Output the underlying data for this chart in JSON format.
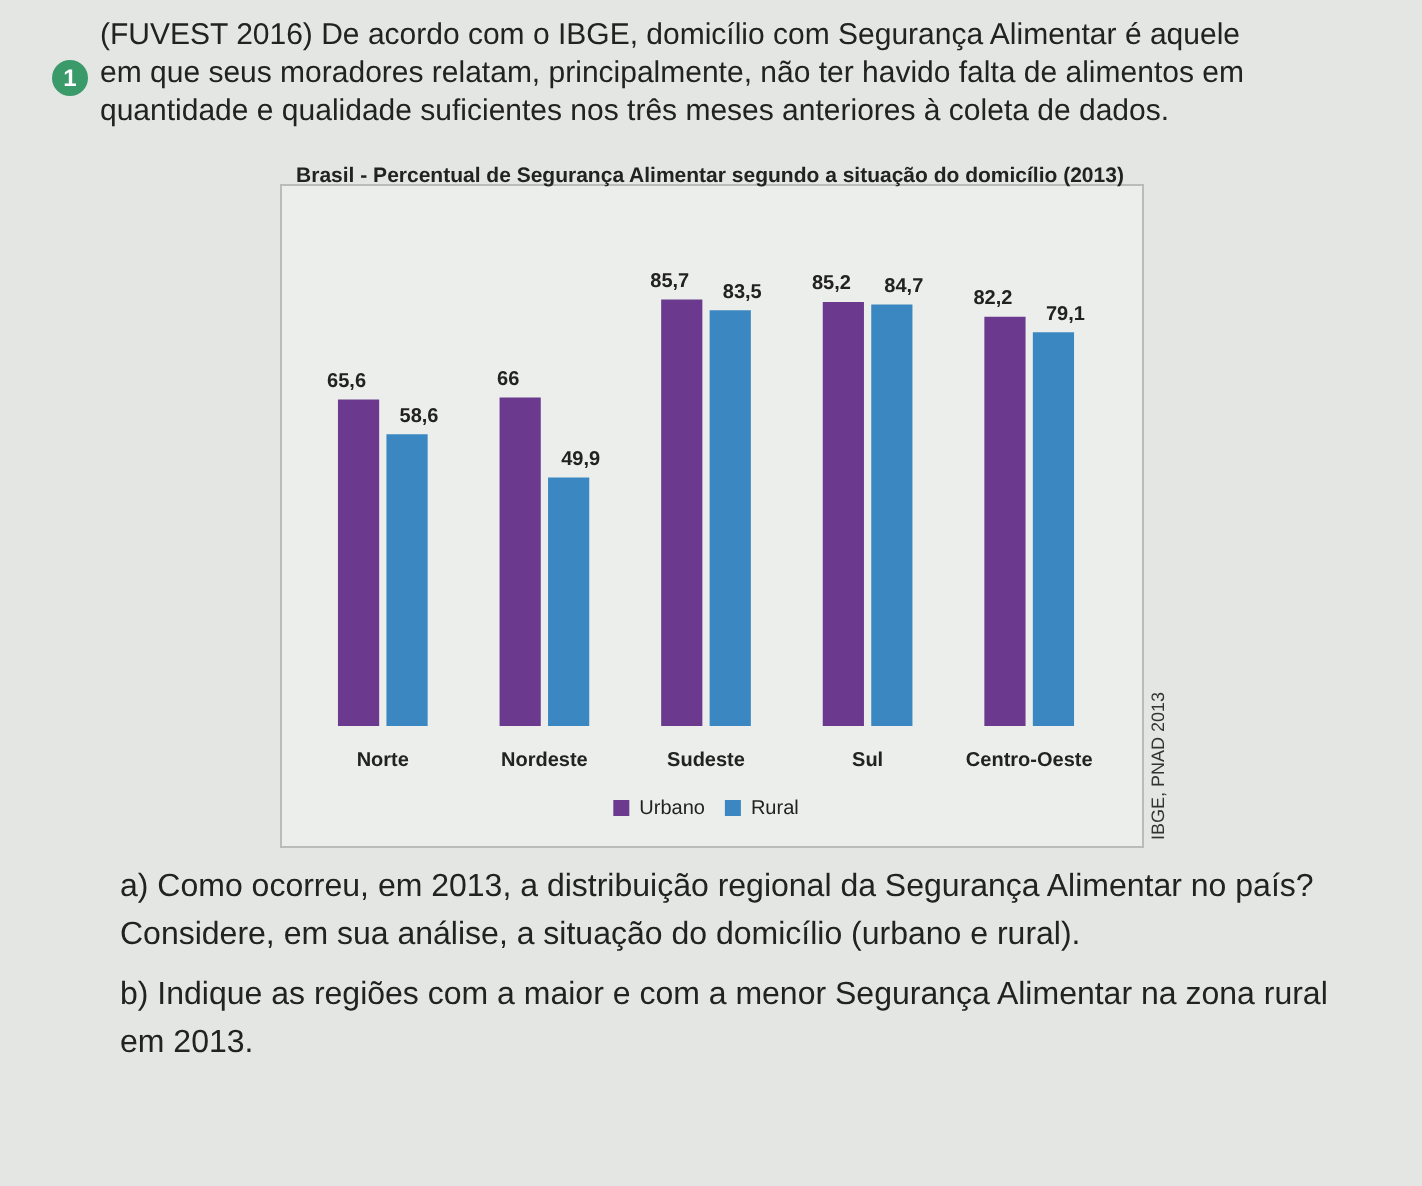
{
  "chart_data": {
    "type": "bar",
    "title": "Brasil - Percentual de Segurança Alimentar segundo a situação do domicílio (2013)",
    "categories": [
      "Norte",
      "Nordeste",
      "Sudeste",
      "Sul",
      "Centro-Oeste"
    ],
    "series": [
      {
        "name": "Urbano",
        "color": "#6b3a8e",
        "values": [
          65.6,
          66,
          85.7,
          85.2,
          82.2
        ],
        "value_labels": [
          "65,6",
          "66",
          "85,7",
          "85,2",
          "82,2"
        ]
      },
      {
        "name": "Rural",
        "color": "#3b87c2",
        "values": [
          58.6,
          49.9,
          83.5,
          84.7,
          79.1
        ],
        "value_labels": [
          "58,6",
          "49,9",
          "83,5",
          "84,7",
          "79,1"
        ]
      }
    ],
    "legend": "bottom",
    "grid": false,
    "annotations": [
      "1",
      "(FUVEST 2016) De acordo com o IBGE, domicílio com Segurança Alimentar é aquele em que seus moradores relatam, principalmente, não ter havido falta de alimentos em quantidade e qualidade suficientes nos três meses anteriores à coleta de dados.",
      "IBGE, PNAD 2013",
      "a) Como ocorreu, em 2013, a distribuição regional da Segurança Alimentar no país? Considere, em sua análise, a situação do domicílio (urbano e rural).",
      "b) Indique as regiões com a maior e com a menor Segurança Alimentar na zona rural em 2013."
    ]
  }
}
